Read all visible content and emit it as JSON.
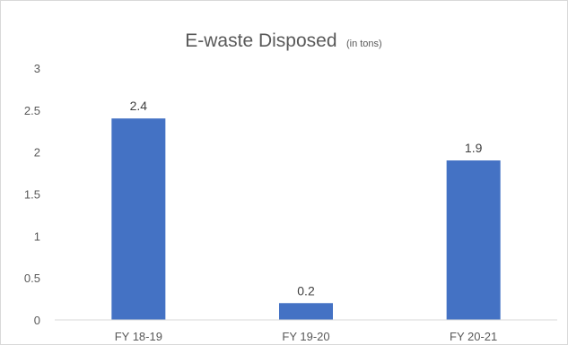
{
  "chart_data": {
    "type": "bar",
    "title": "E-waste Disposed",
    "subtitle": "(in tons)",
    "categories": [
      "FY 18-19",
      "FY 19-20",
      "FY 20-21"
    ],
    "values": [
      2.4,
      0.2,
      1.9
    ],
    "data_labels": [
      "2.4",
      "0.2",
      "1.9"
    ],
    "ylim": [
      0,
      3
    ],
    "yticks": [
      0,
      0.5,
      1,
      1.5,
      2,
      2.5,
      3
    ],
    "ytick_labels": [
      "0",
      "0.5",
      "1",
      "1.5",
      "2",
      "2.5",
      "3"
    ],
    "grid": false,
    "bar_color": "#4472c4",
    "xlabel": "",
    "ylabel": ""
  }
}
